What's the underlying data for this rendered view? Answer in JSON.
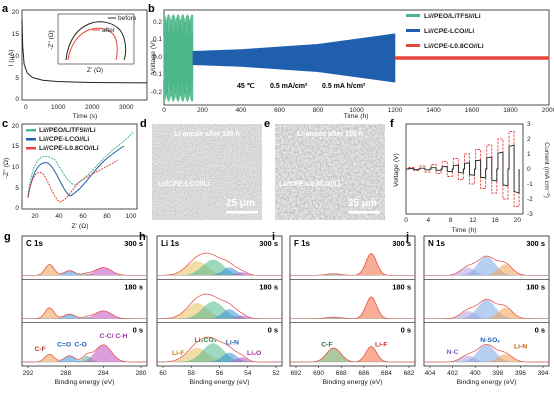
{
  "figure": {
    "panel_letters": [
      "a",
      "b",
      "c",
      "d",
      "e",
      "f",
      "g",
      "h",
      "i",
      "j"
    ]
  },
  "panel_a": {
    "ylabel": "I (μA)",
    "xlabel": "Time (s)",
    "xticks": [
      "0",
      "1000",
      "2000",
      "3000"
    ],
    "yticks": [
      "0",
      "5",
      "10",
      "15",
      "20"
    ],
    "inset": {
      "ylabel": "-Z'' (Ω)",
      "xlabel": "Z' (Ω)",
      "xticks": [
        "0",
        "50",
        "100",
        "150",
        "200"
      ],
      "yticks": [
        "0",
        "50",
        "100"
      ],
      "legend": [
        "before",
        "after"
      ]
    }
  },
  "panel_b": {
    "ylabel": "Voltage (V)",
    "xlabel": "Time (h)",
    "xticks": [
      "0",
      "200",
      "400",
      "600",
      "800",
      "1000",
      "1200",
      "1400",
      "1600",
      "1800",
      "2000"
    ],
    "yticks": [
      "-0.2",
      "-0.1",
      "0.0",
      "0.1",
      "0.2"
    ],
    "legend": [
      "Li//PEO/LiTFSI//Li",
      "Li//CPE-LCO//Li",
      "Li//CPE-L0.8CO//Li"
    ],
    "conditions": [
      "45 ℃",
      "0.5 mA/cm²",
      "0.5 mA h/cm²"
    ]
  },
  "panel_c": {
    "ylabel": "-Z'' (Ω)",
    "xlabel": "Z' (Ω)",
    "xticks": [
      "20",
      "40",
      "60",
      "80",
      "100"
    ],
    "yticks": [
      "0",
      "5",
      "10",
      "15",
      "20"
    ],
    "legend": [
      "Li//PEO/LiTFSI//Li",
      "Li//CPE-LCO//Li",
      "Li//CPE-L0.8CO//Li"
    ]
  },
  "panel_d": {
    "title": "Li-anode after 100 h",
    "caption": "Li//CPE-LCO//Li",
    "scale": "25 μm"
  },
  "panel_e": {
    "title": "Li-anode after 100 h",
    "caption": "Li//CPE-L0.8CO//Li",
    "scale": "25 μm"
  },
  "panel_f": {
    "ylabel_left": "Voltage (V)",
    "ylabel_right": "Current (mA cm⁻²)",
    "xlabel": "Time (h)",
    "xticks": [
      "0",
      "4",
      "8",
      "12",
      "16",
      "20"
    ],
    "yticks_right": [
      "-3",
      "-2",
      "-1",
      "0",
      "1",
      "2",
      "3"
    ]
  },
  "xps": {
    "xlabel": "Binding energy (eV)",
    "panels": [
      {
        "key": "g",
        "element": "C 1s",
        "xticks": [
          "292",
          "288",
          "284",
          "280"
        ],
        "labels": [
          "C-F",
          "C=O",
          "C-O",
          "C-C/ C-H"
        ]
      },
      {
        "key": "h",
        "element": "Li 1s",
        "xticks": [
          "60",
          "58",
          "56",
          "54",
          "52"
        ],
        "labels": [
          "Li-F",
          "Li₂CO₃",
          "Li-N",
          "Li₂O"
        ]
      },
      {
        "key": "i",
        "element": "F 1s",
        "xticks": [
          "692",
          "690",
          "688",
          "686",
          "684",
          "682"
        ],
        "labels": [
          "C-F",
          "Li-F"
        ]
      },
      {
        "key": "j",
        "element": "N 1s",
        "xticks": [
          "404",
          "402",
          "400",
          "398",
          "396",
          "394"
        ],
        "labels": [
          "N-C",
          "N-SOₓ",
          "Li-N"
        ]
      }
    ],
    "times": [
      "300 s",
      "180 s",
      "0 s"
    ]
  },
  "colors": {
    "green": "#4cb88a",
    "blue": "#1f5fad",
    "red": "#e8453c"
  },
  "chart_data": [
    {
      "type": "line",
      "panel": "a",
      "title": "",
      "xlabel": "Time (s)",
      "ylabel": "I (μA)",
      "xlim": [
        0,
        3600
      ],
      "ylim": [
        0,
        20
      ],
      "series": [
        {
          "x": [
            0,
            20,
            60,
            150,
            300,
            600,
            1000,
            2000,
            3600
          ],
          "y": [
            18,
            12,
            8,
            6,
            5,
            4.4,
            4.1,
            3.9,
            3.8
          ]
        }
      ]
    },
    {
      "type": "line",
      "panel": "a-inset",
      "xlabel": "Z' (Ω)",
      "ylabel": "-Z'' (Ω)",
      "xlim": [
        0,
        220
      ],
      "ylim": [
        0,
        130
      ],
      "series": [
        {
          "name": "before",
          "x": [
            20,
            60,
            100,
            140,
            185,
            200
          ],
          "y": [
            0,
            75,
            90,
            75,
            0,
            20
          ]
        },
        {
          "name": "after",
          "x": [
            20,
            60,
            100,
            140,
            175,
            190
          ],
          "y": [
            0,
            65,
            80,
            65,
            0,
            18
          ]
        }
      ]
    },
    {
      "type": "line",
      "panel": "b",
      "xlabel": "Time (h)",
      "ylabel": "Voltage (V)",
      "xlim": [
        0,
        2000
      ],
      "ylim": [
        -0.25,
        0.25
      ],
      "series": [
        {
          "name": "Li//PEO/LiTFSI//Li",
          "x": [
            0,
            150
          ],
          "amplitude": [
            0.25,
            0.25
          ]
        },
        {
          "name": "Li//CPE-LCO//Li",
          "x": [
            150,
            400,
            800,
            1200
          ],
          "amplitude": [
            0.04,
            0.05,
            0.08,
            0.14
          ]
        },
        {
          "name": "Li//CPE-L0.8CO//Li",
          "x": [
            1200,
            2000
          ],
          "amplitude": [
            0.01,
            0.01
          ]
        }
      ]
    },
    {
      "type": "line",
      "panel": "c",
      "xlabel": "Z' (Ω)",
      "ylabel": "-Z'' (Ω)",
      "xlim": [
        10,
        105
      ],
      "ylim": [
        0,
        20
      ],
      "series": [
        {
          "name": "Li//PEO/LiTFSI//Li",
          "x": [
            15,
            35,
            55,
            75,
            95
          ],
          "y": [
            6,
            12,
            9,
            4,
            14
          ]
        },
        {
          "name": "Li//CPE-LCO//Li",
          "x": [
            15,
            30,
            45,
            65,
            85
          ],
          "y": [
            5,
            11,
            8,
            3,
            10
          ]
        },
        {
          "name": "Li//CPE-L0.8CO//Li",
          "x": [
            15,
            25,
            38,
            50,
            60,
            80
          ],
          "y": [
            4,
            9,
            6,
            2,
            6,
            12
          ]
        }
      ]
    },
    {
      "type": "line",
      "panel": "f",
      "xlabel": "Time (h)",
      "ylabel": "Voltage (V)",
      "xlim": [
        0,
        21
      ],
      "ylim": [
        -3,
        3
      ],
      "steps": [
        0.1,
        0.2,
        0.3,
        0.5,
        0.7,
        1.0,
        1.3,
        1.6,
        2.0,
        2.5
      ]
    }
  ]
}
